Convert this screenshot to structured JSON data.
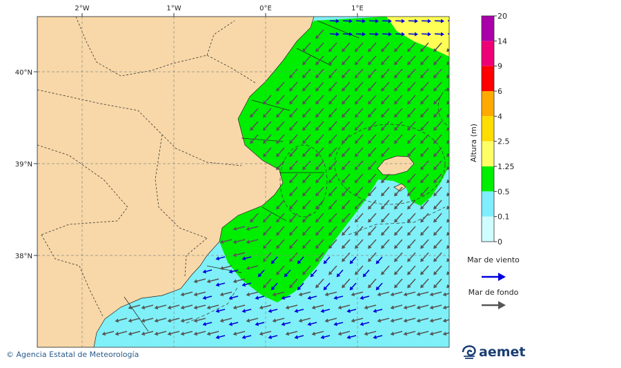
{
  "map": {
    "lon_labels": [
      "2°W",
      "1°W",
      "0°E",
      "1°E"
    ],
    "lat_labels": [
      "40°N",
      "39°N",
      "38°N"
    ],
    "land_color": "#f8d8a8",
    "sea_color": "#7ff0f7"
  },
  "colorbar": {
    "axis_label": "Altura (m)",
    "ticks": [
      "20",
      "14",
      "9",
      "6",
      "4",
      "2.5",
      "1.25",
      "0.5",
      "0.1",
      "0"
    ],
    "colors": [
      "#aa00aa",
      "#ee0077",
      "#ff0000",
      "#ffaa00",
      "#ffdd00",
      "#ffff66",
      "#00ee00",
      "#7feeff",
      "#cffcff"
    ]
  },
  "legend": {
    "wind_sea_label": "Mar de viento",
    "wind_sea_color": "#0000dd",
    "swell_label": "Mar de fondo",
    "swell_color": "#555555"
  },
  "footer": {
    "copyright": "© Agencia Estatal de Meteorología",
    "logo_text": "aemet",
    "logo_icon": "aemet-swirl-icon"
  }
}
